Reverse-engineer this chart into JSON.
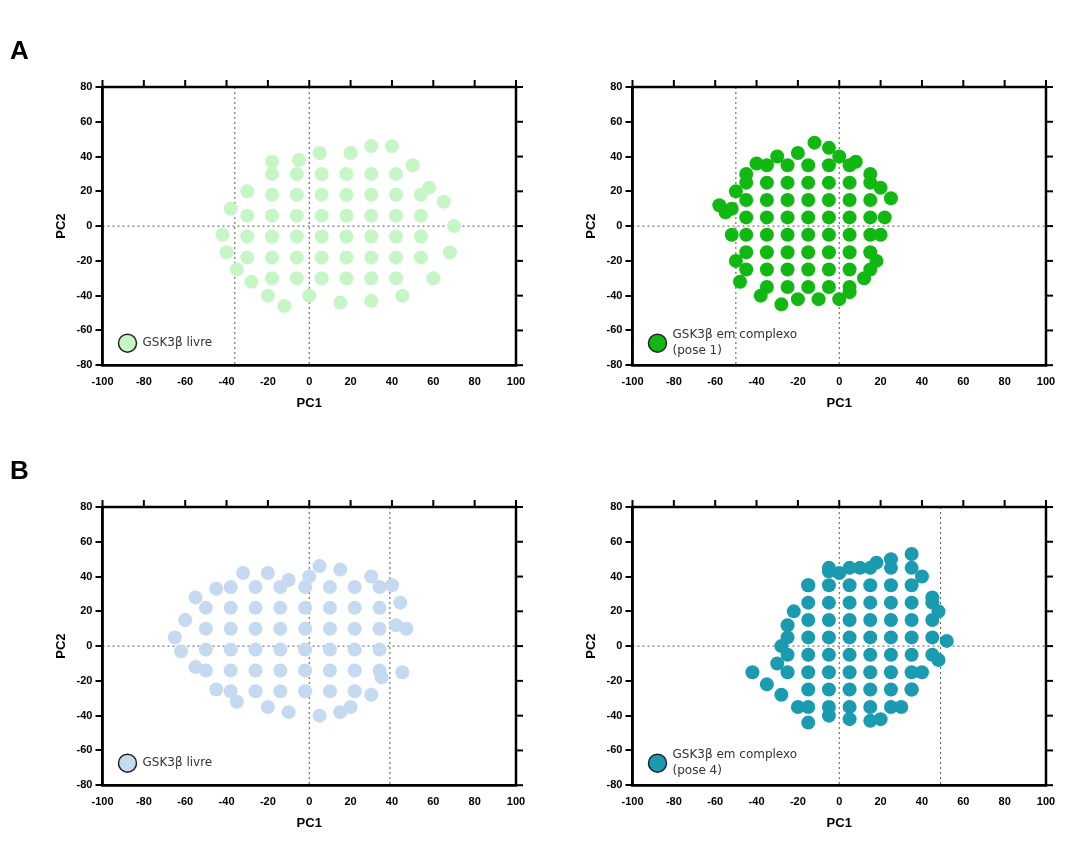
{
  "chart_data": [
    {
      "type": "scatter",
      "annotations": [
        "A"
      ],
      "xlabel": "PC1",
      "ylabel": "PC2",
      "xlim": [
        -100,
        100
      ],
      "xticks": [
        -100,
        -80,
        -60,
        -40,
        -20,
        0,
        20,
        40,
        60,
        80,
        100
      ],
      "ylim": [
        -80,
        80
      ],
      "yticks": [
        -80,
        -60,
        -40,
        -20,
        0,
        20,
        40,
        60,
        80
      ],
      "grid": false,
      "legend": "bottom left",
      "marker": "circle",
      "ref_lines": [
        {
          "axis": "x",
          "value": -36,
          "line_style": "dotted"
        },
        {
          "axis": "x",
          "value": 0,
          "line_style": "dotted"
        },
        {
          "axis": "y",
          "value": 0,
          "line_style": "dotted"
        }
      ],
      "series": [
        {
          "name": "GSK3β livre",
          "color": "#c6f5c6",
          "x": [
            -40,
            -42,
            -38,
            -30,
            -18,
            -5,
            5,
            20,
            30,
            40,
            50,
            58,
            65,
            70,
            68,
            60,
            45,
            30,
            15,
            0,
            -12,
            -20,
            -28,
            -35,
            -30,
            -30,
            -30,
            -18,
            -18,
            -18,
            -18,
            -18,
            -18,
            -6,
            -6,
            -6,
            -6,
            -6,
            -6,
            6,
            6,
            6,
            6,
            6,
            6,
            18,
            18,
            18,
            18,
            18,
            18,
            30,
            30,
            30,
            30,
            30,
            30,
            42,
            42,
            42,
            42,
            42,
            42,
            54,
            54,
            54,
            54
          ],
          "values": [
            -15,
            -5,
            10,
            20,
            37,
            38,
            42,
            42,
            46,
            46,
            35,
            22,
            14,
            0,
            -15,
            -30,
            -40,
            -43,
            -44,
            -40,
            -46,
            -40,
            -32,
            -25,
            -18,
            -6,
            6,
            -30,
            -18,
            -6,
            6,
            18,
            30,
            -30,
            -18,
            -6,
            6,
            18,
            30,
            -30,
            -18,
            -6,
            6,
            18,
            30,
            -30,
            -18,
            -6,
            6,
            18,
            30,
            -30,
            -18,
            -6,
            6,
            18,
            30,
            -30,
            -18,
            -6,
            6,
            18,
            30,
            -18,
            -6,
            6,
            18
          ]
        }
      ]
    },
    {
      "type": "scatter",
      "xlabel": "PC1",
      "ylabel": "PC2",
      "xlim": [
        -100,
        100
      ],
      "xticks": [
        -100,
        -80,
        -60,
        -40,
        -20,
        0,
        20,
        40,
        60,
        80,
        100
      ],
      "ylim": [
        -80,
        80
      ],
      "yticks": [
        -80,
        -60,
        -40,
        -20,
        0,
        20,
        40,
        60,
        80
      ],
      "grid": false,
      "legend": "bottom left",
      "marker": "circle",
      "ref_lines": [
        {
          "axis": "x",
          "value": -50,
          "line_style": "dotted"
        },
        {
          "axis": "x",
          "value": 0,
          "line_style": "dotted"
        },
        {
          "axis": "y",
          "value": 0,
          "line_style": "dotted"
        }
      ],
      "series": [
        {
          "name": "GSK3β em complexo (pose 1)",
          "color": "#12b812",
          "x": [
            -58,
            -52,
            -50,
            -45,
            -40,
            -30,
            -20,
            -12,
            -5,
            0,
            8,
            15,
            20,
            25,
            22,
            20,
            18,
            12,
            5,
            0,
            -10,
            -20,
            -28,
            -38,
            -48,
            -50,
            -52,
            -55,
            -45,
            -45,
            -45,
            -45,
            -45,
            -45,
            -35,
            -35,
            -35,
            -35,
            -35,
            -35,
            -35,
            -35,
            -25,
            -25,
            -25,
            -25,
            -25,
            -25,
            -25,
            -25,
            -15,
            -15,
            -15,
            -15,
            -15,
            -15,
            -15,
            -15,
            -5,
            -5,
            -5,
            -5,
            -5,
            -5,
            -5,
            -5,
            5,
            5,
            5,
            5,
            5,
            5,
            5,
            5,
            15,
            15,
            15,
            15,
            15,
            15
          ],
          "values": [
            12,
            10,
            20,
            30,
            36,
            40,
            42,
            48,
            45,
            40,
            37,
            30,
            22,
            16,
            5,
            -5,
            -20,
            -30,
            -38,
            -42,
            -42,
            -42,
            -45,
            -40,
            -32,
            -20,
            -5,
            8,
            -25,
            -15,
            -5,
            5,
            15,
            25,
            -35,
            -25,
            -15,
            -5,
            5,
            15,
            25,
            35,
            -35,
            -25,
            -15,
            -5,
            5,
            15,
            25,
            35,
            -35,
            -25,
            -15,
            -5,
            5,
            15,
            25,
            35,
            -35,
            -25,
            -15,
            -5,
            5,
            15,
            25,
            35,
            -35,
            -25,
            -15,
            -5,
            5,
            15,
            25,
            35,
            -25,
            -15,
            -5,
            5,
            15,
            25
          ]
        }
      ]
    },
    {
      "type": "scatter",
      "annotations": [
        "B"
      ],
      "xlabel": "PC1",
      "ylabel": "PC2",
      "xlim": [
        -100,
        100
      ],
      "xticks": [
        -100,
        -80,
        -60,
        -40,
        -20,
        0,
        20,
        40,
        60,
        80,
        100
      ],
      "ylim": [
        -80,
        80
      ],
      "yticks": [
        -80,
        -60,
        -40,
        -20,
        0,
        20,
        40,
        60,
        80
      ],
      "grid": false,
      "legend": "bottom left",
      "marker": "circle",
      "ref_lines": [
        {
          "axis": "x",
          "value": 0,
          "line_style": "dotted"
        },
        {
          "axis": "x",
          "value": 39,
          "line_style": "dotted"
        },
        {
          "axis": "y",
          "value": 0,
          "line_style": "dotted"
        }
      ],
      "series": [
        {
          "name": "GSK3β livre",
          "color": "#c5d9f1",
          "x": [
            -65,
            -60,
            -55,
            -45,
            -32,
            -20,
            -10,
            0,
            5,
            15,
            30,
            40,
            44,
            42,
            47,
            45,
            35,
            30,
            20,
            15,
            5,
            -10,
            -20,
            -35,
            -45,
            -55,
            -62,
            -50,
            -50,
            -50,
            -50,
            -38,
            -38,
            -38,
            -38,
            -38,
            -38,
            -26,
            -26,
            -26,
            -26,
            -26,
            -26,
            -14,
            -14,
            -14,
            -14,
            -14,
            -14,
            -2,
            -2,
            -2,
            -2,
            -2,
            -2,
            10,
            10,
            10,
            10,
            10,
            10,
            22,
            22,
            22,
            22,
            22,
            22,
            34,
            34,
            34,
            34,
            34
          ],
          "values": [
            5,
            15,
            28,
            33,
            42,
            42,
            38,
            40,
            46,
            44,
            40,
            35,
            25,
            12,
            10,
            -15,
            -18,
            -28,
            -35,
            -38,
            -40,
            -38,
            -35,
            -32,
            -25,
            -12,
            -3,
            -14,
            -2,
            10,
            22,
            -26,
            -14,
            -2,
            10,
            22,
            34,
            -26,
            -14,
            -2,
            10,
            22,
            34,
            -26,
            -14,
            -2,
            10,
            22,
            34,
            -26,
            -14,
            -2,
            10,
            22,
            34,
            -26,
            -14,
            -2,
            10,
            22,
            34,
            -26,
            -14,
            -2,
            10,
            22,
            34,
            -14,
            -2,
            10,
            22,
            34
          ]
        }
      ]
    },
    {
      "type": "scatter",
      "xlabel": "PC1",
      "ylabel": "PC2",
      "xlim": [
        -100,
        100
      ],
      "xticks": [
        -100,
        -80,
        -60,
        -40,
        -20,
        0,
        20,
        40,
        60,
        80,
        100
      ],
      "ylim": [
        -80,
        80
      ],
      "yticks": [
        -80,
        -60,
        -40,
        -20,
        0,
        20,
        40,
        60,
        80
      ],
      "grid": false,
      "legend": "bottom left",
      "marker": "circle",
      "ref_lines": [
        {
          "axis": "x",
          "value": 0,
          "line_style": "dotted"
        },
        {
          "axis": "x",
          "value": 49,
          "line_style": "dotted"
        },
        {
          "axis": "y",
          "value": 0,
          "line_style": "dotted"
        }
      ],
      "series": [
        {
          "name": "GSK3β em complexo (pose 4)",
          "color": "#1a9bb0",
          "x": [
            -42,
            -35,
            -30,
            -28,
            -25,
            -22,
            -15,
            -5,
            0,
            10,
            18,
            25,
            35,
            40,
            45,
            48,
            52,
            48,
            40,
            35,
            30,
            20,
            15,
            5,
            -5,
            -15,
            -20,
            -28,
            -25,
            -25,
            -25,
            -15,
            -15,
            -15,
            -15,
            -15,
            -15,
            -15,
            -15,
            -5,
            -5,
            -5,
            -5,
            -5,
            -5,
            -5,
            -5,
            -5,
            5,
            5,
            5,
            5,
            5,
            5,
            5,
            5,
            5,
            15,
            15,
            15,
            15,
            15,
            15,
            15,
            15,
            15,
            25,
            25,
            25,
            25,
            25,
            25,
            25,
            25,
            25,
            35,
            35,
            35,
            35,
            35,
            35,
            35,
            35,
            45,
            45,
            45,
            45
          ],
          "values": [
            -15,
            -22,
            -10,
            0,
            12,
            20,
            35,
            43,
            42,
            45,
            48,
            50,
            53,
            40,
            28,
            20,
            3,
            -8,
            -15,
            -25,
            -35,
            -42,
            -43,
            -42,
            -40,
            -44,
            -35,
            -28,
            -15,
            -5,
            5,
            -35,
            -25,
            -15,
            -5,
            5,
            15,
            25,
            35,
            -35,
            -25,
            -15,
            -5,
            5,
            15,
            25,
            35,
            45,
            -35,
            -25,
            -15,
            -5,
            5,
            15,
            25,
            35,
            45,
            -35,
            -25,
            -15,
            -5,
            5,
            15,
            25,
            35,
            45,
            -35,
            -25,
            -15,
            -5,
            5,
            15,
            25,
            35,
            45,
            -25,
            -15,
            -5,
            5,
            15,
            25,
            35,
            45,
            -5,
            5,
            15,
            25
          ]
        }
      ]
    }
  ]
}
